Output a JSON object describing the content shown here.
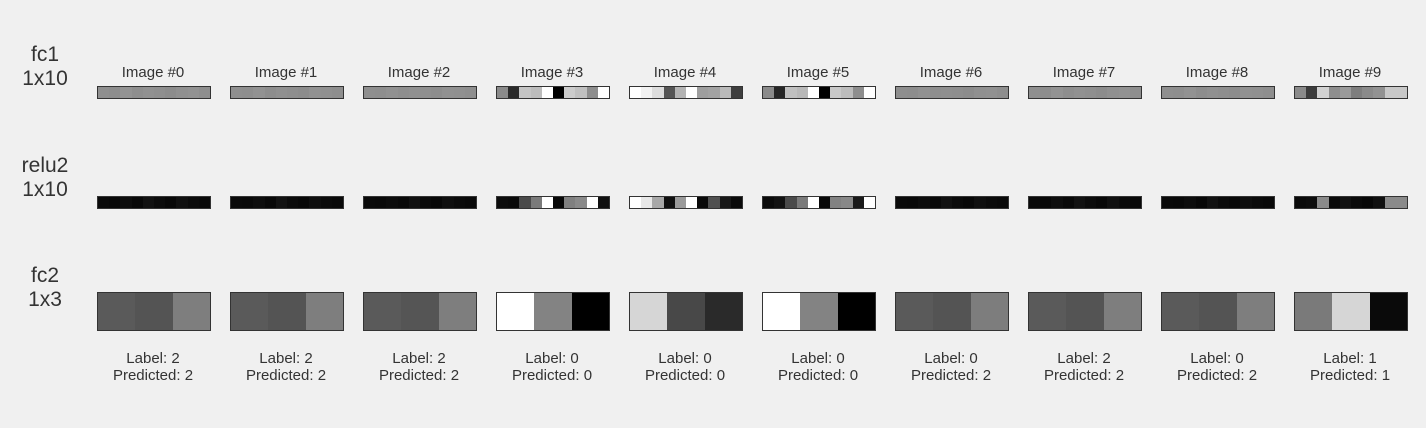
{
  "rows": [
    {
      "name": "fc1",
      "shape": "1x10"
    },
    {
      "name": "relu2",
      "shape": "1x10"
    },
    {
      "name": "fc2",
      "shape": "1x3"
    }
  ],
  "label_prefix": "Label: ",
  "predicted_prefix": "Predicted: ",
  "images": [
    {
      "title": "Image #0",
      "label": "2",
      "predicted": "2",
      "fc1": [
        "#8f8f8f",
        "#8d8d8d",
        "#939393",
        "#8e8e8e",
        "#919191",
        "#8f8f8f",
        "#8c8c8c",
        "#909090",
        "#929292",
        "#8e8e8e"
      ],
      "relu2": [
        "#0a0a0a",
        "#080808",
        "#0e0e0e",
        "#090909",
        "#121212",
        "#0c0c0c",
        "#080808",
        "#101010",
        "#0b0b0b",
        "#090909"
      ],
      "fc2": [
        "#5a5a5a",
        "#545454",
        "#7e7e7e"
      ]
    },
    {
      "title": "Image #1",
      "label": "2",
      "predicted": "2",
      "fc1": [
        "#8f8f8f",
        "#8e8e8e",
        "#929292",
        "#8d8d8d",
        "#909090",
        "#8e8e8e",
        "#8c8c8c",
        "#919191",
        "#909090",
        "#8e8e8e"
      ],
      "relu2": [
        "#0a0a0a",
        "#090909",
        "#0d0d0d",
        "#080808",
        "#121212",
        "#0b0b0b",
        "#080808",
        "#0f0f0f",
        "#0b0b0b",
        "#090909"
      ],
      "fc2": [
        "#5a5a5a",
        "#545454",
        "#7e7e7e"
      ]
    },
    {
      "title": "Image #2",
      "label": "2",
      "predicted": "2",
      "fc1": [
        "#8f8f8f",
        "#8e8e8e",
        "#919191",
        "#8e8e8e",
        "#909090",
        "#8f8f8f",
        "#8d8d8d",
        "#919191",
        "#909090",
        "#8e8e8e"
      ],
      "relu2": [
        "#0a0a0a",
        "#090909",
        "#0c0c0c",
        "#090909",
        "#111111",
        "#0b0b0b",
        "#080808",
        "#0f0f0f",
        "#0b0b0b",
        "#090909"
      ],
      "fc2": [
        "#5a5a5a",
        "#555555",
        "#7e7e7e"
      ]
    },
    {
      "title": "Image #3",
      "label": "0",
      "predicted": "0",
      "fc1": [
        "#8a8a8a",
        "#2a2a2a",
        "#c4c4c4",
        "#bcbcbc",
        "#ffffff",
        "#000000",
        "#cccccc",
        "#c0c0c0",
        "#8e8e8e",
        "#ffffff"
      ],
      "relu2": [
        "#0c0c0c",
        "#0a0a0a",
        "#4a4a4a",
        "#7a7a7a",
        "#ffffff",
        "#080808",
        "#808080",
        "#8a8a8a",
        "#ffffff",
        "#111111"
      ],
      "fc2": [
        "#ffffff",
        "#838383",
        "#000000"
      ]
    },
    {
      "title": "Image #4",
      "label": "0",
      "predicted": "0",
      "fc1": [
        "#ffffff",
        "#f2f2f2",
        "#dddddd",
        "#555555",
        "#b4b4b4",
        "#ffffff",
        "#9e9e9e",
        "#a2a2a2",
        "#bababa",
        "#3e3e3e"
      ],
      "relu2": [
        "#ffffff",
        "#e8e8e8",
        "#a8a8a8",
        "#101010",
        "#9a9a9a",
        "#ffffff",
        "#0a0a0a",
        "#505050",
        "#181818",
        "#0a0a0a"
      ],
      "fc2": [
        "#d6d6d6",
        "#484848",
        "#2a2a2a"
      ]
    },
    {
      "title": "Image #5",
      "label": "0",
      "predicted": "0",
      "fc1": [
        "#8a8a8a",
        "#262626",
        "#c0c0c0",
        "#b8b8b8",
        "#ffffff",
        "#000000",
        "#c8c8c8",
        "#bcbcbc",
        "#8e8e8e",
        "#ffffff"
      ],
      "relu2": [
        "#0b0b0b",
        "#121212",
        "#4a4a4a",
        "#7a7a7a",
        "#ffffff",
        "#090909",
        "#828282",
        "#888888",
        "#1a1a1a",
        "#ffffff"
      ],
      "fc2": [
        "#ffffff",
        "#838383",
        "#000000"
      ]
    },
    {
      "title": "Image #6",
      "label": "0",
      "predicted": "2",
      "fc1": [
        "#8e8e8e",
        "#8d8d8d",
        "#919191",
        "#8e8e8e",
        "#8f8f8f",
        "#8e8e8e",
        "#8c8c8c",
        "#909090",
        "#919191",
        "#8e8e8e"
      ],
      "relu2": [
        "#0a0a0a",
        "#090909",
        "#0d0d0d",
        "#090909",
        "#111111",
        "#0b0b0b",
        "#080808",
        "#0f0f0f",
        "#0b0b0b",
        "#090909"
      ],
      "fc2": [
        "#5a5a5a",
        "#545454",
        "#7d7d7d"
      ]
    },
    {
      "title": "Image #7",
      "label": "2",
      "predicted": "2",
      "fc1": [
        "#8f8f8f",
        "#8d8d8d",
        "#939393",
        "#8e8e8e",
        "#919191",
        "#8f8f8f",
        "#8c8c8c",
        "#909090",
        "#929292",
        "#8e8e8e"
      ],
      "relu2": [
        "#0a0a0a",
        "#080808",
        "#0e0e0e",
        "#090909",
        "#121212",
        "#0c0c0c",
        "#080808",
        "#101010",
        "#0b0b0b",
        "#090909"
      ],
      "fc2": [
        "#5a5a5a",
        "#545454",
        "#7e7e7e"
      ]
    },
    {
      "title": "Image #8",
      "label": "0",
      "predicted": "2",
      "fc1": [
        "#8f8f8f",
        "#8e8e8e",
        "#929292",
        "#8d8d8d",
        "#909090",
        "#8e8e8e",
        "#8c8c8c",
        "#919191",
        "#909090",
        "#8e8e8e"
      ],
      "relu2": [
        "#0a0a0a",
        "#090909",
        "#0d0d0d",
        "#080808",
        "#121212",
        "#0b0b0b",
        "#080808",
        "#0f0f0f",
        "#0b0b0b",
        "#090909"
      ],
      "fc2": [
        "#5a5a5a",
        "#545454",
        "#7e7e7e"
      ]
    },
    {
      "title": "Image #9",
      "label": "1",
      "predicted": "1",
      "fc1": [
        "#8a8a8a",
        "#3c3c3c",
        "#d2d2d2",
        "#8e8e8e",
        "#9a9a9a",
        "#7e7e7e",
        "#8a8a8a",
        "#929292",
        "#c8c8c8",
        "#c8c8c8"
      ],
      "relu2": [
        "#0a0a0a",
        "#0c0c0c",
        "#8a8a8a",
        "#0a0a0a",
        "#121212",
        "#0b0b0b",
        "#080808",
        "#101010",
        "#8a8a8a",
        "#8a8a8a"
      ],
      "fc2": [
        "#7a7a7a",
        "#d6d6d6",
        "#0a0a0a"
      ]
    }
  ]
}
